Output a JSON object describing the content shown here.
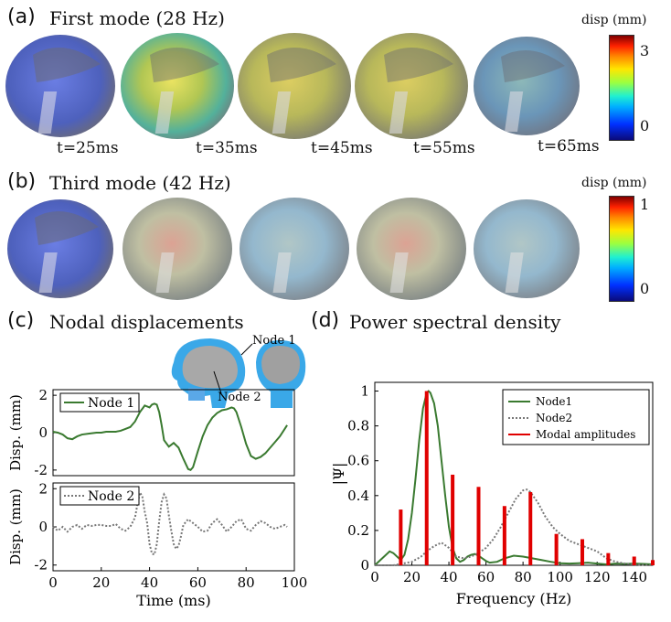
{
  "panel_a": {
    "letter": "(a)",
    "title": "First mode (28 Hz)",
    "times": [
      "t=25ms",
      "t=35ms",
      "t=45ms",
      "t=55ms",
      "t=65ms"
    ],
    "colorbar": {
      "title": "disp (mm)",
      "max_label": "3",
      "min_label": "0"
    }
  },
  "panel_b": {
    "letter": "(b)",
    "title": "Third mode (42 Hz)",
    "colorbar": {
      "title": "disp (mm)",
      "max_label": "1",
      "min_label": "0"
    }
  },
  "panel_c": {
    "letter": "(c)",
    "title": "Nodal displacements",
    "inset": {
      "node1_label": "Node 1",
      "node2_label": "Node 2"
    }
  },
  "panel_d": {
    "letter": "(d)",
    "title": "Power spectral density"
  },
  "chart_data": [
    {
      "type": "line",
      "ylabel": "Disp. (mm)",
      "xlim": [
        0,
        100
      ],
      "ylim": [
        -2.3,
        2.3
      ],
      "yticks": [
        "2",
        "0",
        "-2"
      ],
      "series": [
        {
          "name": "Node 1",
          "color": "#3a7a30",
          "x": [
            0,
            2,
            4,
            6,
            8,
            10,
            12,
            15,
            18,
            20,
            22,
            24,
            26,
            28,
            30,
            32,
            34,
            36,
            38,
            40,
            41,
            42,
            43,
            44,
            45,
            46,
            48,
            50,
            52,
            54,
            56,
            57,
            58,
            60,
            62,
            64,
            66,
            68,
            70,
            72,
            74,
            75,
            76,
            78,
            80,
            82,
            84,
            86,
            88,
            90,
            92,
            94,
            96,
            97
          ],
          "y": [
            0.05,
            0,
            -0.1,
            -0.3,
            -0.35,
            -0.2,
            -0.1,
            -0.05,
            0,
            0,
            0.05,
            0.05,
            0.05,
            0.1,
            0.2,
            0.3,
            0.6,
            1.1,
            1.45,
            1.35,
            1.5,
            1.55,
            1.5,
            1.1,
            0.4,
            -0.4,
            -0.75,
            -0.55,
            -0.8,
            -1.4,
            -1.95,
            -2.0,
            -1.85,
            -1.0,
            -0.2,
            0.4,
            0.8,
            1.05,
            1.2,
            1.25,
            1.35,
            1.3,
            1.1,
            0.3,
            -0.6,
            -1.25,
            -1.4,
            -1.3,
            -1.1,
            -0.8,
            -0.5,
            -0.2,
            0.2,
            0.4
          ]
        }
      ]
    },
    {
      "type": "line",
      "xlabel": "Time (ms)",
      "ylabel": "Disp. (mm)",
      "xlim": [
        0,
        100
      ],
      "ylim": [
        -2.3,
        2.3
      ],
      "xticks": [
        "0",
        "20",
        "40",
        "60",
        "80",
        "100"
      ],
      "yticks": [
        "2",
        "0",
        "-2"
      ],
      "series": [
        {
          "name": "Node 2",
          "color": "#777777",
          "dashed": true,
          "x": [
            0,
            2,
            4,
            6,
            8,
            10,
            12,
            14,
            16,
            18,
            20,
            22,
            24,
            26,
            28,
            30,
            32,
            34,
            35,
            36,
            37,
            38,
            39,
            40,
            41,
            42,
            43,
            44,
            45,
            46,
            47,
            48,
            49,
            50,
            51,
            52,
            53,
            54,
            56,
            58,
            60,
            62,
            64,
            66,
            68,
            70,
            72,
            74,
            76,
            78,
            80,
            82,
            84,
            86,
            88,
            90,
            92,
            94,
            96,
            97
          ],
          "y": [
            0,
            -0.2,
            0,
            -0.25,
            0,
            0.1,
            -0.1,
            0.1,
            0.05,
            0.1,
            0.1,
            0.05,
            0.05,
            0.15,
            -0.1,
            -0.2,
            0,
            0.5,
            1.2,
            1.8,
            1.6,
            0.8,
            0.2,
            -0.9,
            -1.4,
            -1.45,
            -0.9,
            0.3,
            1.3,
            1.7,
            1.5,
            0.6,
            -0.2,
            -0.9,
            -1.15,
            -1.0,
            -0.5,
            0.1,
            0.4,
            0.2,
            0,
            -0.25,
            -0.2,
            0.2,
            0.4,
            0.1,
            -0.25,
            0,
            0.3,
            0.4,
            -0.1,
            -0.2,
            0.1,
            0.3,
            0.2,
            0,
            -0.1,
            0,
            0.1,
            0
          ]
        }
      ]
    },
    {
      "type": "line",
      "xlabel": "Frequency (Hz)",
      "ylabel": "|Ψ|",
      "xlim": [
        0,
        150
      ],
      "ylim": [
        0,
        1.05
      ],
      "xticks": [
        "0",
        "20",
        "40",
        "60",
        "80",
        "100",
        "120",
        "140"
      ],
      "yticks": [
        "0",
        "0.2",
        "0.4",
        "0.6",
        "0.8",
        "1"
      ],
      "legend_position": "top-right",
      "series": [
        {
          "name": "Node1",
          "color": "#3a7a30",
          "x": [
            0,
            3,
            5,
            8,
            10,
            12,
            14,
            16,
            18,
            20,
            22,
            24,
            26,
            28,
            29,
            30,
            32,
            34,
            36,
            38,
            40,
            42,
            44,
            46,
            48,
            50,
            52,
            54,
            56,
            58,
            60,
            62,
            66,
            70,
            75,
            80,
            85,
            90,
            95,
            100,
            105,
            110,
            115,
            120,
            125,
            130,
            135,
            140,
            145,
            150
          ],
          "y": [
            0,
            0.03,
            0.05,
            0.08,
            0.07,
            0.05,
            0.03,
            0.06,
            0.15,
            0.3,
            0.5,
            0.72,
            0.9,
            0.99,
            1.0,
            0.99,
            0.93,
            0.8,
            0.6,
            0.4,
            0.22,
            0.1,
            0.04,
            0.02,
            0.03,
            0.05,
            0.06,
            0.065,
            0.055,
            0.04,
            0.025,
            0.015,
            0.02,
            0.04,
            0.055,
            0.05,
            0.04,
            0.03,
            0.02,
            0.012,
            0.01,
            0.012,
            0.015,
            0.01,
            0.005,
            0.01,
            0.008,
            0.01,
            0.008,
            0.005
          ]
        },
        {
          "name": "Node2",
          "color": "#777777",
          "dashed": true,
          "x": [
            0,
            10,
            15,
            20,
            25,
            28,
            32,
            36,
            40,
            44,
            48,
            52,
            56,
            60,
            64,
            68,
            72,
            76,
            80,
            82,
            84,
            88,
            92,
            96,
            100,
            105,
            110,
            115,
            120,
            125,
            130,
            135,
            140,
            145,
            150
          ],
          "y": [
            0,
            0,
            0.01,
            0.02,
            0.05,
            0.08,
            0.11,
            0.13,
            0.1,
            0.05,
            0.04,
            0.05,
            0.07,
            0.1,
            0.15,
            0.22,
            0.3,
            0.38,
            0.43,
            0.435,
            0.42,
            0.36,
            0.28,
            0.22,
            0.18,
            0.14,
            0.12,
            0.1,
            0.08,
            0.04,
            0.02,
            0.01,
            0.005,
            0.002,
            0
          ]
        },
        {
          "name": "Modal amplitudes",
          "color": "#e00000",
          "bars": true,
          "x": [
            14,
            28,
            42,
            56,
            70,
            84,
            98,
            112,
            126,
            140,
            150
          ],
          "y": [
            0.32,
            1.0,
            0.52,
            0.45,
            0.34,
            0.42,
            0.18,
            0.15,
            0.07,
            0.05,
            0.03
          ]
        }
      ]
    }
  ]
}
